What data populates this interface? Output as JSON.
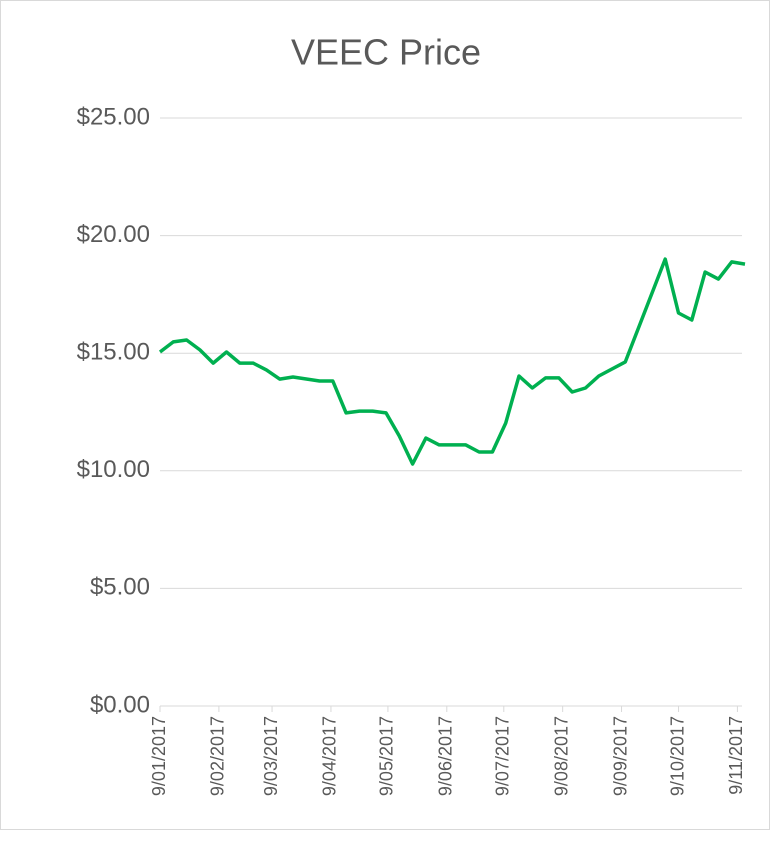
{
  "chart_data": {
    "type": "line",
    "title": "VEEC Price",
    "x": [
      "9/01/2017",
      "16/01/2017",
      "23/01/2017",
      "30/01/2017",
      "6/02/2017",
      "13/02/2017",
      "20/02/2017",
      "27/02/2017",
      "6/03/2017",
      "13/03/2017",
      "20/03/2017",
      "3/04/2017",
      "10/04/2017",
      "17/04/2017",
      "24/04/2017",
      "1/05/2017",
      "8/05/2017",
      "15/05/2017",
      "22/05/2017",
      "29/05/2017",
      "5/06/2017",
      "19/06/2017",
      "26/06/2017",
      "3/07/2017",
      "10/07/2017",
      "17/07/2017",
      "24/07/2017",
      "31/07/2017",
      "7/08/2017",
      "14/08/2017",
      "21/08/2017",
      "28/08/2017",
      "11/09/2017",
      "2/10/2017",
      "9/10/2017",
      "16/10/2017",
      "23/10/2017",
      "30/10/2017",
      "6/11/2017",
      "13/11/2017"
    ],
    "series": [
      {
        "name": "VEEC Price",
        "color": "#00b050",
        "values": [
          15.05,
          15.48,
          15.56,
          15.14,
          14.58,
          15.05,
          14.58,
          14.58,
          14.29,
          13.9,
          13.99,
          13.82,
          13.82,
          12.46,
          12.54,
          12.54,
          12.46,
          11.48,
          10.29,
          11.39,
          11.1,
          11.1,
          10.8,
          10.8,
          12.03,
          14.03,
          13.52,
          13.95,
          13.95,
          13.35,
          13.52,
          14.03,
          14.63,
          19.0,
          16.71,
          16.41,
          18.45,
          18.15,
          18.88,
          18.79
        ]
      }
    ],
    "xlim": [
      "9/01/2017",
      "13/11/2017"
    ],
    "xticks": [
      "9/01/2017",
      "9/02/2017",
      "9/03/2017",
      "9/04/2017",
      "9/05/2017",
      "9/06/2017",
      "9/07/2017",
      "9/08/2017",
      "9/09/2017",
      "9/10/2017",
      "9/11/2017"
    ],
    "ylim": [
      0,
      25
    ],
    "yticks": [
      {
        "value": 0,
        "label": "$0.00"
      },
      {
        "value": 5,
        "label": "$5.00"
      },
      {
        "value": 10,
        "label": "$10.00"
      },
      {
        "value": 15,
        "label": "$15.00"
      },
      {
        "value": 20,
        "label": "$20.00"
      },
      {
        "value": 25,
        "label": "$25.00"
      }
    ],
    "grid": true
  }
}
